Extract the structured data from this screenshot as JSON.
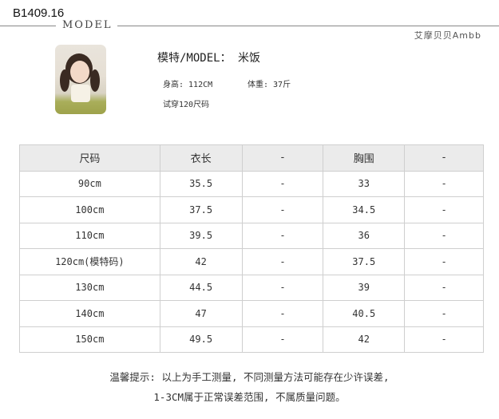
{
  "product_code": "B1409.16",
  "section_title": "MODEL",
  "brand": "艾摩贝贝Ambb",
  "model": {
    "title": "模特/MODEL： 米饭",
    "height": "身高: 112CM",
    "weight": "体重: 37斤",
    "tried_size": "试穿120尺码"
  },
  "table": {
    "headers": [
      "尺码",
      "衣长",
      "-",
      "胸围",
      "-"
    ],
    "rows": [
      [
        "90cm",
        "35.5",
        "-",
        "33",
        "-"
      ],
      [
        "100cm",
        "37.5",
        "-",
        "34.5",
        "-"
      ],
      [
        "110cm",
        "39.5",
        "-",
        "36",
        "-"
      ],
      [
        "120cm(模特码)",
        "42",
        "-",
        "37.5",
        "-"
      ],
      [
        "130cm",
        "44.5",
        "-",
        "39",
        "-"
      ],
      [
        "140cm",
        "47",
        "-",
        "40.5",
        "-"
      ],
      [
        "150cm",
        "49.5",
        "-",
        "42",
        "-"
      ]
    ]
  },
  "notes": [
    "温馨提示: 以上为手工测量, 不同测量方法可能存在少许误差,",
    "1-3CM属于正常误差范围, 不属质量问题。"
  ]
}
